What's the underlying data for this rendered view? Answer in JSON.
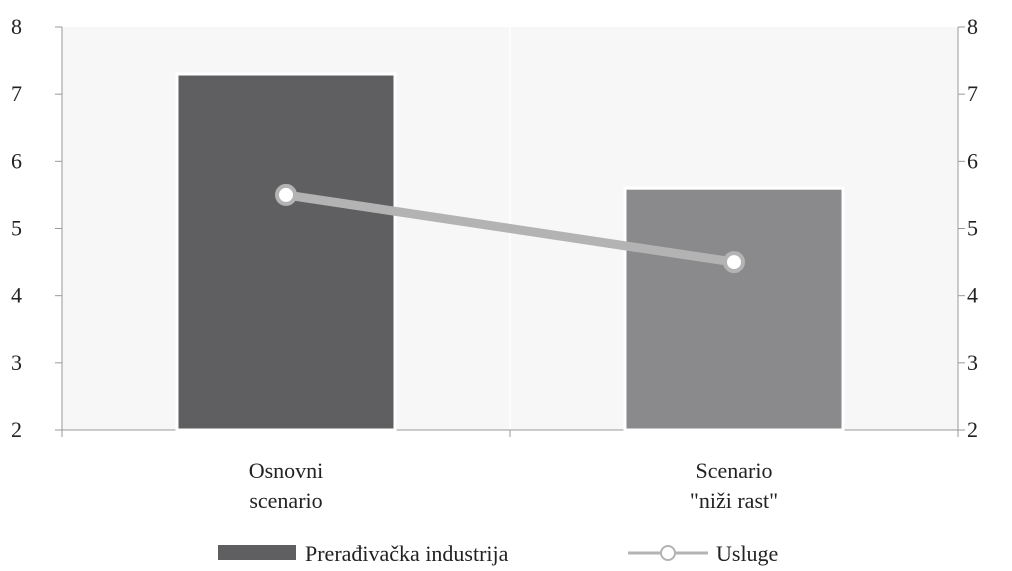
{
  "chart_data": {
    "type": "bar",
    "categories": [
      [
        "Osnovni",
        "scenario"
      ],
      [
        "Scenario",
        "\"niži rast\""
      ]
    ],
    "series": [
      {
        "name": "Prerađivačka industrija",
        "type": "bar",
        "values": [
          7.3,
          5.6
        ],
        "colors": [
          "#5f5f62",
          "#8a8a8d"
        ]
      },
      {
        "name": "Usluge",
        "type": "line",
        "values": [
          5.5,
          4.5
        ],
        "color": "#b3b3b3"
      }
    ],
    "ylim": [
      2,
      8
    ],
    "yticks": [
      "2",
      "3",
      "4",
      "5",
      "6",
      "7",
      "8"
    ],
    "y2ticks": [
      "2",
      "3",
      "4",
      "5",
      "6",
      "7",
      "8"
    ],
    "grid": false,
    "legend_position": "bottom",
    "colors": {
      "plot_bg": "#f7f7f8",
      "axis": "#999999",
      "marker_fill": "#ffffff"
    }
  }
}
